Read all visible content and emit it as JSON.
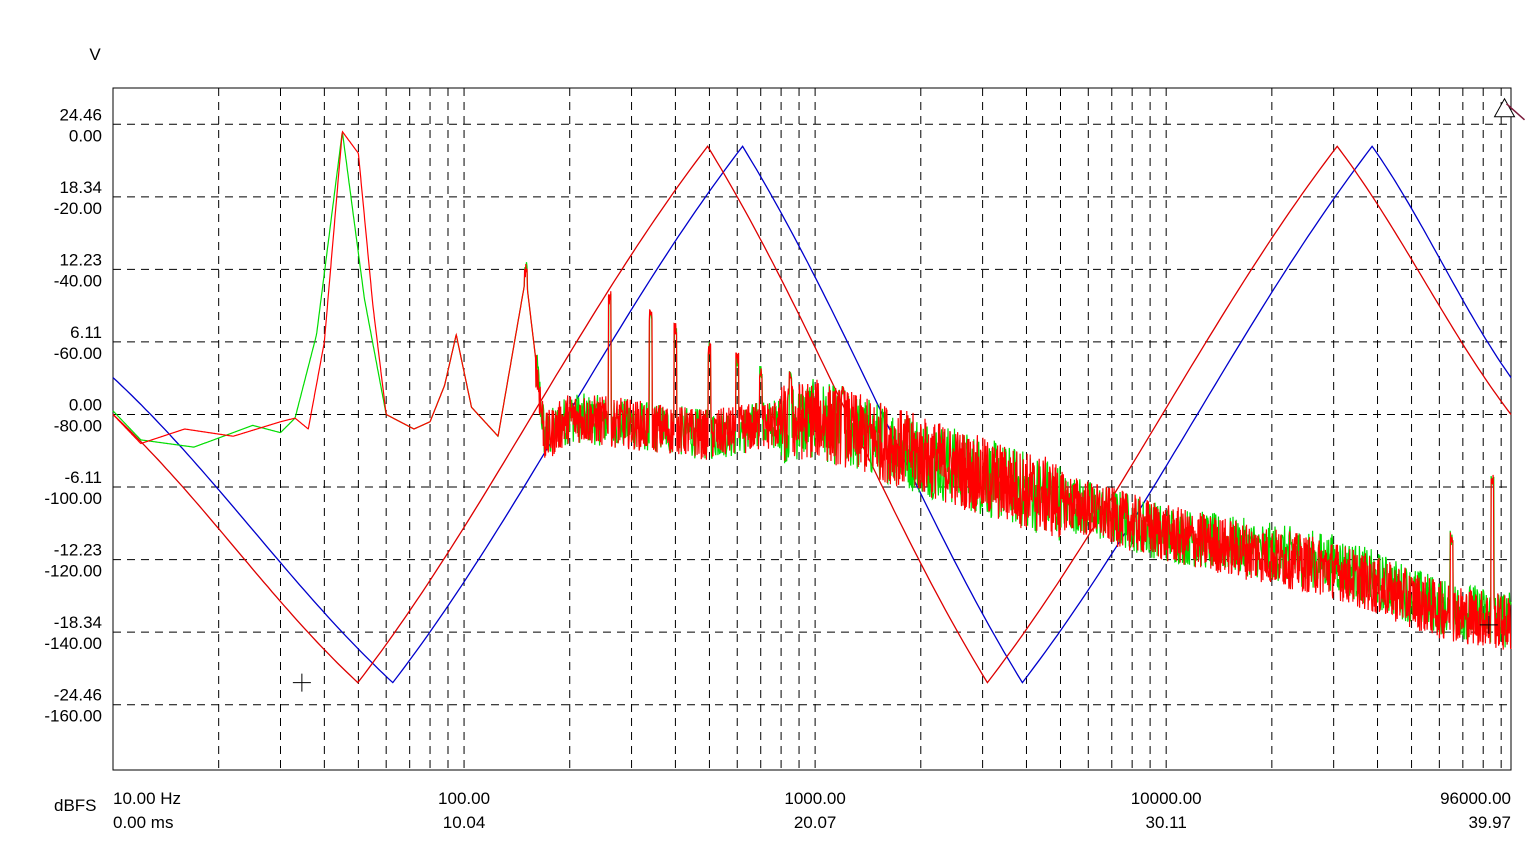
{
  "chart_data": {
    "type": "line",
    "title": "",
    "x_axis": {
      "scale": "log",
      "range": [
        10,
        96000
      ],
      "unit_label": "dBFS",
      "decade_ticks": [
        10,
        100,
        1000,
        10000,
        96000
      ],
      "tick_labels_freq": [
        "10.00 Hz",
        "100.00",
        "1000.00",
        "10000.00",
        "96000.00"
      ],
      "tick_labels_time": [
        "0.00 ms",
        "10.04",
        "20.07",
        "30.11",
        "39.97"
      ],
      "time_range_ms": [
        0,
        39.97
      ]
    },
    "y_axis": {
      "unit_label": "V",
      "left_volts_labels": [
        "24.46",
        "18.34",
        "12.23",
        "6.11",
        "0.00",
        "-6.11",
        "-12.23",
        "-18.34",
        "-24.46"
      ],
      "left_dbfs_labels": [
        "0.00",
        "-20.00",
        "-40.00",
        "-60.00",
        "-80.00",
        "-100.00",
        "-120.00",
        "-140.00",
        "-160.00"
      ],
      "dbfs_range": [
        -178,
        10
      ],
      "volts_range": [
        -24.46,
        24.46
      ]
    },
    "grid": true,
    "series": [
      {
        "role": "time-domain sine (blue)",
        "color": "#0000cc",
        "units": "V vs ms",
        "amplitude": 24.46,
        "points_ms_v": [
          [
            0,
            3.11
          ],
          [
            8,
            -22.6
          ],
          [
            18,
            22.6
          ],
          [
            26,
            -22.6
          ],
          [
            36,
            22.6
          ],
          [
            39.97,
            3.11
          ]
        ]
      },
      {
        "role": "time-domain sine (red)",
        "color": "#dd0000",
        "units": "V vs ms",
        "amplitude": 24.46,
        "points_ms_v": [
          [
            0,
            0
          ],
          [
            7,
            -22.6
          ],
          [
            17,
            22.6
          ],
          [
            25,
            -22.6
          ],
          [
            35,
            22.6
          ],
          [
            39.97,
            0
          ]
        ]
      },
      {
        "role": "spectrum (green)",
        "color": "#00dd00",
        "units": "dBFS vs Hz",
        "points_hz_db": [
          [
            10,
            -79
          ],
          [
            12,
            -87
          ],
          [
            17,
            -89
          ],
          [
            25,
            -83
          ],
          [
            30,
            -85
          ],
          [
            33,
            -81
          ],
          [
            38,
            -58
          ],
          [
            45,
            -2
          ],
          [
            52,
            -48
          ],
          [
            60,
            -80
          ],
          [
            72,
            -84
          ],
          [
            80,
            -82
          ],
          [
            88,
            -72
          ],
          [
            95,
            -58
          ],
          [
            105,
            -78
          ],
          [
            125,
            -86
          ],
          [
            150,
            -42
          ],
          [
            170,
            -86
          ],
          [
            200,
            -80
          ],
          [
            300,
            -82
          ],
          [
            500,
            -85
          ],
          [
            1000,
            -80
          ],
          [
            3000,
            -96
          ],
          [
            10000,
            -112
          ],
          [
            30000,
            -120
          ],
          [
            60000,
            -132
          ],
          [
            96000,
            -136
          ]
        ]
      },
      {
        "role": "spectrum (red)",
        "color": "#ff0000",
        "units": "dBFS vs Hz",
        "points_hz_db": [
          [
            10,
            -80
          ],
          [
            12,
            -88
          ],
          [
            16,
            -84
          ],
          [
            22,
            -86
          ],
          [
            30,
            -82
          ],
          [
            33,
            -81
          ],
          [
            36,
            -84
          ],
          [
            40,
            -60
          ],
          [
            45,
            -2
          ],
          [
            50,
            -8
          ],
          [
            55,
            -50
          ],
          [
            60,
            -80
          ],
          [
            72,
            -84
          ],
          [
            80,
            -82
          ],
          [
            88,
            -72
          ],
          [
            95,
            -58
          ],
          [
            105,
            -78
          ],
          [
            125,
            -86
          ],
          [
            150,
            -42
          ],
          [
            170,
            -86
          ],
          [
            200,
            -80
          ],
          [
            300,
            -82
          ],
          [
            500,
            -85
          ],
          [
            1000,
            -80
          ],
          [
            3000,
            -96
          ],
          [
            10000,
            -112
          ],
          [
            30000,
            -122
          ],
          [
            60000,
            -133
          ],
          [
            96000,
            -137
          ]
        ]
      }
    ],
    "spectral_peaks_hz_db": [
      [
        45,
        -2
      ],
      [
        150,
        -40
      ],
      [
        260,
        -48
      ],
      [
        340,
        -53
      ],
      [
        400,
        -56
      ],
      [
        500,
        -62
      ],
      [
        600,
        -65
      ],
      [
        700,
        -68
      ],
      [
        850,
        -70
      ],
      [
        1200,
        -74
      ],
      [
        65000,
        -114
      ],
      [
        85000,
        -98
      ]
    ],
    "markers": [
      {
        "type": "cross",
        "x_ms": 5.4,
        "y_v": -22.6
      },
      {
        "type": "cross",
        "x_hz": 83000,
        "y_db": -138
      },
      {
        "type": "triangle",
        "x_hz": 92000,
        "y_db": 4
      }
    ]
  }
}
